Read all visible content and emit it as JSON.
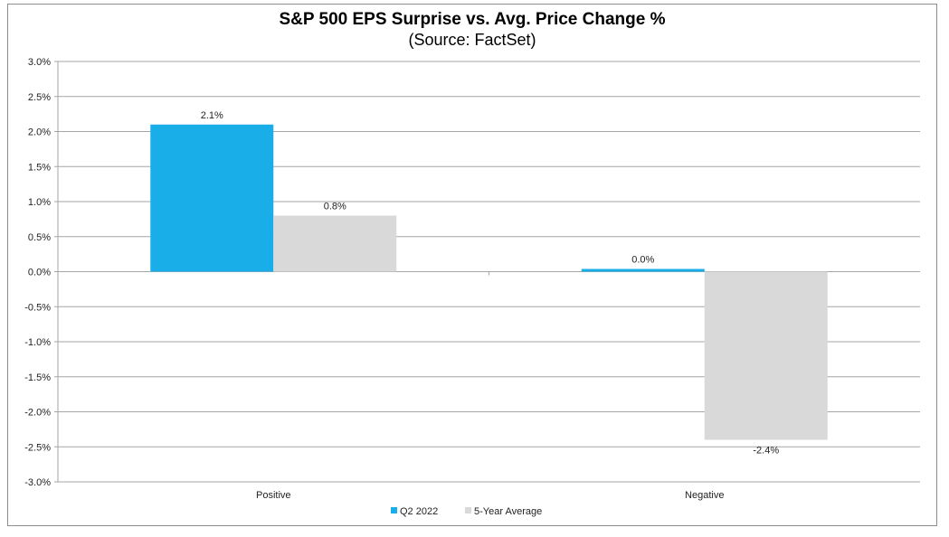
{
  "chart_data": {
    "type": "bar",
    "title": "S&P 500 EPS Surprise vs. Avg. Price Change %",
    "subtitle": "(Source: FactSet)",
    "categories": [
      "Positive",
      "Negative"
    ],
    "series": [
      {
        "name": "Q2 2022",
        "values": [
          2.1,
          0.0
        ],
        "labels": [
          "2.1%",
          "0.0%"
        ],
        "color": "#1aaee8"
      },
      {
        "name": "5-Year Average",
        "values": [
          0.8,
          -2.4
        ],
        "labels": [
          "0.8%",
          "-2.4%"
        ],
        "color": "#d9d9d9"
      }
    ],
    "ylim": [
      -3.0,
      3.0
    ],
    "yticks": [
      3.0,
      2.5,
      2.0,
      1.5,
      1.0,
      0.5,
      0.0,
      -0.5,
      -1.0,
      -1.5,
      -2.0,
      -2.5,
      -3.0
    ],
    "ytick_labels": [
      "3.0%",
      "2.5%",
      "2.0%",
      "1.5%",
      "1.0%",
      "0.5%",
      "0.0%",
      "-0.5%",
      "-1.0%",
      "-1.5%",
      "-2.0%",
      "-2.5%",
      "-3.0%"
    ],
    "grid": true,
    "legend_position": "bottom",
    "gridline_color": "#a6a6a6"
  }
}
